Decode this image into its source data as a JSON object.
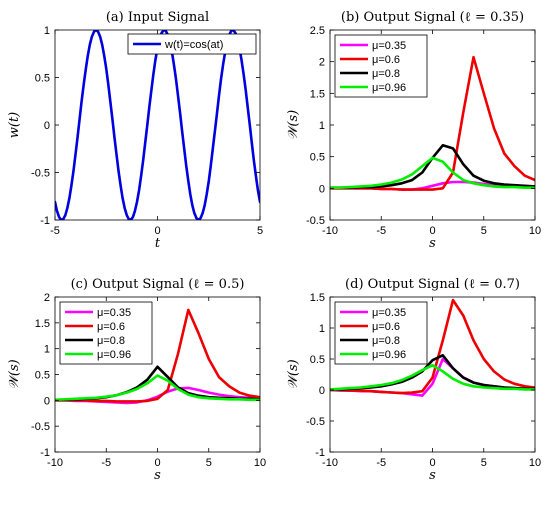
{
  "chart_data": [
    {
      "type": "line",
      "title": "(a) Input Signal",
      "xlabel": "t",
      "ylabel": "w(t)",
      "xlim": [
        -5,
        5
      ],
      "ylim": [
        -1,
        1
      ],
      "xticks": [
        -5,
        0,
        5
      ],
      "yticks": [
        -1,
        -0.5,
        0,
        0.5,
        1
      ],
      "grid": false,
      "legend_position": "top-right",
      "series": [
        {
          "name": "w(t)=cos(at)",
          "color": "#0000e0",
          "x": [
            -5,
            -4.9,
            -4.8,
            -4.7,
            -4.6,
            -4.5,
            -4.4,
            -4.3,
            -4.2,
            -4.1,
            -4,
            -3.9,
            -3.8,
            -3.7,
            -3.6,
            -3.5,
            -3.4,
            -3.3,
            -3.2,
            -3.1,
            -3,
            -2.9,
            -2.8,
            -2.7,
            -2.6,
            -2.5,
            -2.4,
            -2.3,
            -2.2,
            -2.1,
            -2,
            -1.9,
            -1.8,
            -1.7,
            -1.6,
            -1.5,
            -1.4,
            -1.3,
            -1.2,
            -1.1,
            -1,
            -0.9,
            -0.8,
            -0.7,
            -0.6,
            -0.5,
            -0.4,
            -0.3,
            -0.2,
            -0.1,
            0,
            0.1,
            0.2,
            0.3,
            0.4,
            0.5,
            0.6,
            0.7,
            0.8,
            0.9,
            1,
            1.1,
            1.2,
            1.3,
            1.4,
            1.5,
            1.6,
            1.7,
            1.8,
            1.9,
            2,
            2.1,
            2.2,
            2.3,
            2.4,
            2.5,
            2.6,
            2.7,
            2.8,
            2.9,
            3,
            3.1,
            3.2,
            3.3,
            3.4,
            3.5,
            3.6,
            3.7,
            3.8,
            3.9,
            4,
            4.1,
            4.2,
            4.3,
            4.4,
            4.5,
            4.6,
            4.7,
            4.8,
            4.9,
            5
          ],
          "y": [
            -0.809,
            -0.905,
            -0.969,
            -0.998,
            -0.992,
            -0.951,
            -0.876,
            -0.771,
            -0.637,
            -0.482,
            -0.309,
            -0.125,
            0.063,
            0.249,
            0.426,
            0.588,
            0.729,
            0.844,
            0.93,
            0.982,
            1.0,
            0.982,
            0.93,
            0.844,
            0.729,
            0.588,
            0.426,
            0.249,
            0.063,
            -0.125,
            -0.309,
            -0.482,
            -0.637,
            -0.771,
            -0.876,
            -0.951,
            -0.992,
            -0.998,
            -0.969,
            -0.905,
            -0.809,
            -0.685,
            -0.536,
            -0.368,
            -0.187,
            0.0,
            0.187,
            0.368,
            0.536,
            0.685,
            0.809,
            0.905,
            0.969,
            0.998,
            0.992,
            0.951,
            0.876,
            0.771,
            0.637,
            0.482,
            0.309,
            0.125,
            -0.063,
            -0.249,
            -0.426,
            -0.588,
            -0.729,
            -0.844,
            -0.93,
            -0.982,
            -1.0,
            -0.982,
            -0.93,
            -0.844,
            -0.729,
            -0.588,
            -0.426,
            -0.249,
            -0.063,
            0.125,
            0.309,
            0.482,
            0.637,
            0.771,
            0.876,
            0.951,
            0.992,
            0.998,
            0.969,
            0.905,
            0.809,
            0.685,
            0.536,
            0.368,
            0.187,
            0.0,
            -0.187,
            -0.368,
            -0.536,
            -0.685,
            -0.809
          ]
        }
      ]
    },
    {
      "type": "line",
      "title": "(b) Output Signal (ℓ = 0.35)",
      "xlabel": "s",
      "ylabel": "𝒲(s)",
      "xlim": [
        -10,
        10
      ],
      "ylim": [
        -0.5,
        2.5
      ],
      "xticks": [
        -10,
        -5,
        0,
        5,
        10
      ],
      "yticks": [
        -0.5,
        0,
        0.5,
        1,
        1.5,
        2,
        2.5
      ],
      "grid": false,
      "legend_position": "top-left",
      "series": [
        {
          "name": "μ=0.35",
          "color": "#ff00ff",
          "x": [
            -10,
            -9,
            -8,
            -7,
            -6,
            -5,
            -4,
            -3,
            -2,
            -1,
            0,
            1,
            2,
            3,
            4,
            5,
            6,
            7,
            8,
            9,
            10
          ],
          "y": [
            0,
            0,
            0,
            0,
            0,
            -0.01,
            -0.01,
            -0.02,
            -0.02,
            0,
            0.04,
            0.08,
            0.1,
            0.1,
            0.09,
            0.07,
            0.05,
            0.04,
            0.03,
            0.02,
            0.02
          ]
        },
        {
          "name": "μ=0.6",
          "color": "#ee0000",
          "x": [
            -10,
            -9,
            -8,
            -7,
            -6,
            -5,
            -4,
            -3,
            -2,
            -1,
            0,
            1,
            2,
            3,
            4,
            5,
            6,
            7,
            8,
            9,
            10
          ],
          "y": [
            0,
            0,
            0,
            0,
            0,
            -0.01,
            -0.01,
            -0.02,
            -0.02,
            -0.02,
            -0.02,
            0,
            0.25,
            1.2,
            2.07,
            1.5,
            0.95,
            0.55,
            0.35,
            0.2,
            0.13
          ]
        },
        {
          "name": "μ=0.8",
          "color": "#000000",
          "x": [
            -10,
            -9,
            -8,
            -7,
            -6,
            -5,
            -4,
            -3,
            -2,
            -1,
            0,
            1,
            2,
            3,
            4,
            5,
            6,
            7,
            8,
            9,
            10
          ],
          "y": [
            0.01,
            0.01,
            0.01,
            0.02,
            0.02,
            0.03,
            0.05,
            0.08,
            0.13,
            0.25,
            0.48,
            0.68,
            0.63,
            0.38,
            0.2,
            0.12,
            0.08,
            0.06,
            0.05,
            0.04,
            0.03
          ]
        },
        {
          "name": "μ=0.96",
          "color": "#00ee00",
          "x": [
            -10,
            -9,
            -8,
            -7,
            -6,
            -5,
            -4,
            -3,
            -2,
            -1,
            0,
            1,
            2,
            3,
            4,
            5,
            6,
            7,
            8,
            9,
            10
          ],
          "y": [
            0.01,
            0.01,
            0.02,
            0.03,
            0.04,
            0.06,
            0.09,
            0.14,
            0.22,
            0.35,
            0.48,
            0.42,
            0.25,
            0.13,
            0.08,
            0.05,
            0.03,
            0.02,
            0.02,
            0.01,
            0.01
          ]
        }
      ]
    },
    {
      "type": "line",
      "title": "(c) Output Signal (ℓ = 0.5)",
      "xlabel": "s",
      "ylabel": "𝒲(s)",
      "xlim": [
        -10,
        10
      ],
      "ylim": [
        -1,
        2
      ],
      "xticks": [
        -10,
        -5,
        0,
        5,
        10
      ],
      "yticks": [
        -1,
        -0.5,
        0,
        0.5,
        1,
        1.5,
        2
      ],
      "grid": false,
      "legend_position": "top-left",
      "series": [
        {
          "name": "μ=0.35",
          "color": "#ff00ff",
          "x": [
            -10,
            -9,
            -8,
            -7,
            -6,
            -5,
            -4,
            -3,
            -2,
            -1,
            0,
            1,
            2,
            3,
            4,
            5,
            6,
            7,
            8,
            9,
            10
          ],
          "y": [
            0,
            0,
            -0.01,
            -0.01,
            -0.02,
            -0.03,
            -0.04,
            -0.05,
            -0.04,
            0,
            0.07,
            0.17,
            0.23,
            0.24,
            0.2,
            0.15,
            0.11,
            0.08,
            0.06,
            0.05,
            0.04
          ]
        },
        {
          "name": "μ=0.6",
          "color": "#ee0000",
          "x": [
            -10,
            -9,
            -8,
            -7,
            -6,
            -5,
            -4,
            -3,
            -2,
            -1,
            0,
            1,
            2,
            3,
            4,
            5,
            6,
            7,
            8,
            9,
            10
          ],
          "y": [
            0,
            0,
            0,
            0,
            -0.01,
            -0.01,
            -0.02,
            -0.02,
            -0.02,
            -0.01,
            0.03,
            0.2,
            0.9,
            1.75,
            1.3,
            0.8,
            0.45,
            0.27,
            0.15,
            0.09,
            0.06
          ]
        },
        {
          "name": "μ=0.8",
          "color": "#000000",
          "x": [
            -10,
            -9,
            -8,
            -7,
            -6,
            -5,
            -4,
            -3,
            -2,
            -1,
            0,
            1,
            2,
            3,
            4,
            5,
            6,
            7,
            8,
            9,
            10
          ],
          "y": [
            0.01,
            0.01,
            0.02,
            0.03,
            0.04,
            0.06,
            0.1,
            0.16,
            0.25,
            0.4,
            0.65,
            0.45,
            0.25,
            0.14,
            0.09,
            0.06,
            0.05,
            0.04,
            0.03,
            0.03,
            0.02
          ]
        },
        {
          "name": "μ=0.96",
          "color": "#00ee00",
          "x": [
            -10,
            -9,
            -8,
            -7,
            -6,
            -5,
            -4,
            -3,
            -2,
            -1,
            0,
            1,
            2,
            3,
            4,
            5,
            6,
            7,
            8,
            9,
            10
          ],
          "y": [
            0.01,
            0.02,
            0.03,
            0.04,
            0.05,
            0.07,
            0.1,
            0.15,
            0.22,
            0.33,
            0.48,
            0.38,
            0.22,
            0.11,
            0.06,
            0.04,
            0.03,
            0.02,
            0.02,
            0.01,
            0.01
          ]
        }
      ]
    },
    {
      "type": "line",
      "title": "(d) Output Signal (ℓ = 0.7)",
      "xlabel": "s",
      "ylabel": "𝒲(s)",
      "xlim": [
        -10,
        10
      ],
      "ylim": [
        -1,
        1.5
      ],
      "xticks": [
        -10,
        -5,
        0,
        5,
        10
      ],
      "yticks": [
        -1,
        -0.5,
        0,
        0.5,
        1,
        1.5
      ],
      "grid": false,
      "legend_position": "top-left",
      "series": [
        {
          "name": "μ=0.35",
          "color": "#ff00ff",
          "x": [
            -10,
            -9,
            -8,
            -7,
            -6,
            -5,
            -4,
            -3,
            -2,
            -1,
            0,
            1,
            2,
            3,
            4,
            5,
            6,
            7,
            8,
            9,
            10
          ],
          "y": [
            0,
            -0.01,
            -0.01,
            -0.02,
            -0.02,
            -0.03,
            -0.04,
            -0.05,
            -0.07,
            -0.09,
            0.1,
            0.5,
            0.35,
            0.2,
            0.12,
            0.08,
            0.06,
            0.04,
            0.03,
            0.02,
            0.02
          ]
        },
        {
          "name": "μ=0.6",
          "color": "#ee0000",
          "x": [
            -10,
            -9,
            -8,
            -7,
            -6,
            -5,
            -4,
            -3,
            -2,
            -1,
            0,
            1,
            2,
            3,
            4,
            5,
            6,
            7,
            8,
            9,
            10
          ],
          "y": [
            0,
            0,
            -0.01,
            -0.01,
            -0.02,
            -0.03,
            -0.04,
            -0.05,
            -0.04,
            -0.02,
            0.2,
            0.8,
            1.45,
            1.2,
            0.8,
            0.5,
            0.3,
            0.17,
            0.1,
            0.06,
            0.04
          ]
        },
        {
          "name": "μ=0.8",
          "color": "#000000",
          "x": [
            -10,
            -9,
            -8,
            -7,
            -6,
            -5,
            -4,
            -3,
            -2,
            -1,
            0,
            1,
            2,
            3,
            4,
            5,
            6,
            7,
            8,
            9,
            10
          ],
          "y": [
            0.01,
            0.01,
            0.02,
            0.03,
            0.04,
            0.06,
            0.09,
            0.13,
            0.2,
            0.3,
            0.48,
            0.56,
            0.35,
            0.2,
            0.12,
            0.08,
            0.06,
            0.04,
            0.03,
            0.02,
            0.02
          ]
        },
        {
          "name": "μ=0.96",
          "color": "#00ee00",
          "x": [
            -10,
            -9,
            -8,
            -7,
            -6,
            -5,
            -4,
            -3,
            -2,
            -1,
            0,
            1,
            2,
            3,
            4,
            5,
            6,
            7,
            8,
            9,
            10
          ],
          "y": [
            0.01,
            0.02,
            0.03,
            0.04,
            0.06,
            0.08,
            0.11,
            0.16,
            0.23,
            0.32,
            0.4,
            0.3,
            0.18,
            0.1,
            0.06,
            0.04,
            0.03,
            0.02,
            0.02,
            0.01,
            0.01
          ]
        }
      ]
    }
  ]
}
